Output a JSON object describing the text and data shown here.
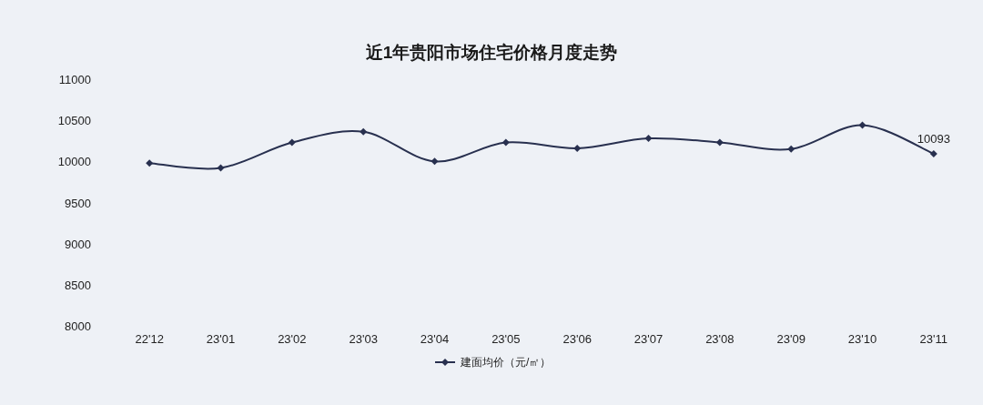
{
  "chart_data": {
    "type": "line",
    "title": "近1年贵阳市场住宅价格月度走势",
    "categories": [
      "22'12",
      "23'01",
      "23'02",
      "23'03",
      "23'04",
      "23'05",
      "23'06",
      "23'07",
      "23'08",
      "23'09",
      "23'10",
      "23'11"
    ],
    "series": [
      {
        "name": "建面均价（元/㎡）",
        "color": "#28304f",
        "values": [
          9980,
          9920,
          10230,
          10360,
          10000,
          10230,
          10160,
          10280,
          10230,
          10150,
          10440,
          10093
        ],
        "value_labels": [
          null,
          null,
          null,
          null,
          null,
          null,
          null,
          null,
          null,
          null,
          null,
          "10093"
        ]
      }
    ],
    "ylim": [
      8000,
      11000
    ],
    "yticks": [
      8000,
      8500,
      9000,
      9500,
      10000,
      10500,
      11000
    ],
    "grid": false,
    "legend": "bottom",
    "marker": "diamond",
    "line_style": "solid"
  }
}
